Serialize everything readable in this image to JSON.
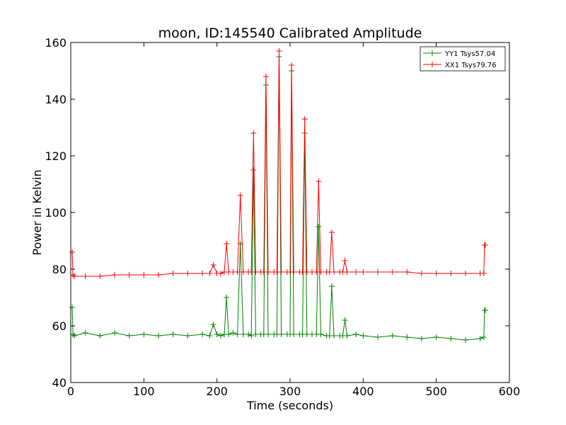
{
  "chart_data": {
    "type": "line",
    "title": "moon, ID:145540 Calibrated Amplitude",
    "xlabel": "Time (seconds)",
    "ylabel": "Power in Kelvin",
    "xlim": [
      0,
      600
    ],
    "ylim": [
      40,
      160
    ],
    "xticks": [
      0,
      100,
      200,
      300,
      400,
      500,
      600
    ],
    "yticks": [
      40,
      60,
      80,
      100,
      120,
      140,
      160
    ],
    "grid": false,
    "legend_position": "top-right",
    "series": [
      {
        "name": "YY1 Tsys57.04",
        "color": "#008000",
        "marker": "+",
        "x": [
          2,
          3,
          5,
          20,
          40,
          60,
          80,
          100,
          120,
          140,
          160,
          180,
          190,
          195,
          200,
          205,
          210,
          213,
          216,
          222,
          228,
          232,
          236,
          243,
          247,
          250,
          253,
          260,
          264,
          267,
          270,
          278,
          282,
          285,
          288,
          296,
          300,
          302,
          305,
          313,
          317,
          320,
          323,
          330,
          336,
          339,
          342,
          350,
          354,
          357,
          360,
          368,
          372,
          375,
          378,
          390,
          400,
          420,
          440,
          460,
          480,
          500,
          520,
          540,
          560,
          565,
          566,
          567
        ],
        "y": [
          66.5,
          57,
          56.5,
          57.5,
          56.5,
          57.5,
          56.5,
          57,
          56.5,
          57,
          56.5,
          57,
          56.5,
          60.5,
          57,
          56.5,
          57,
          70,
          57,
          57.5,
          57,
          89,
          57,
          57,
          56.5,
          115,
          57,
          57,
          57,
          145,
          57,
          57,
          57,
          155,
          57,
          57,
          57,
          150,
          57,
          57,
          57,
          128,
          57,
          57,
          57,
          95,
          57,
          56.5,
          56.5,
          74,
          56.5,
          56.5,
          56.5,
          62,
          56.5,
          57,
          56.5,
          56,
          56.5,
          56,
          55.5,
          56,
          55.5,
          55,
          55.5,
          56,
          65.5,
          65.5
        ]
      },
      {
        "name": "XX1 Tsys79.76",
        "color": "#ff0000",
        "marker": "+",
        "x": [
          2,
          3,
          5,
          20,
          40,
          60,
          80,
          100,
          120,
          140,
          160,
          180,
          190,
          195,
          200,
          205,
          210,
          213,
          216,
          222,
          228,
          232,
          236,
          243,
          247,
          250,
          253,
          260,
          264,
          267,
          270,
          278,
          282,
          285,
          288,
          296,
          300,
          302,
          305,
          313,
          317,
          320,
          323,
          330,
          336,
          339,
          342,
          350,
          354,
          357,
          360,
          368,
          372,
          375,
          378,
          390,
          400,
          420,
          440,
          460,
          480,
          500,
          520,
          540,
          560,
          565,
          566,
          567
        ],
        "y": [
          86,
          78,
          77.5,
          77.5,
          77.5,
          78,
          78,
          78,
          78,
          78.5,
          78.5,
          78.5,
          78.5,
          81.5,
          78.5,
          78.5,
          79,
          89,
          79,
          79,
          79,
          106,
          79,
          79,
          79,
          128,
          79,
          79,
          79,
          148,
          79,
          79,
          79,
          157,
          79,
          79,
          79,
          152,
          79,
          79,
          79,
          133,
          79,
          79,
          79,
          111,
          79,
          79,
          79,
          93,
          79,
          79,
          79,
          83,
          79,
          79,
          79,
          79,
          79,
          79,
          78.5,
          78.5,
          78.5,
          78.5,
          78.5,
          78.5,
          88.5,
          88.5
        ]
      }
    ]
  }
}
